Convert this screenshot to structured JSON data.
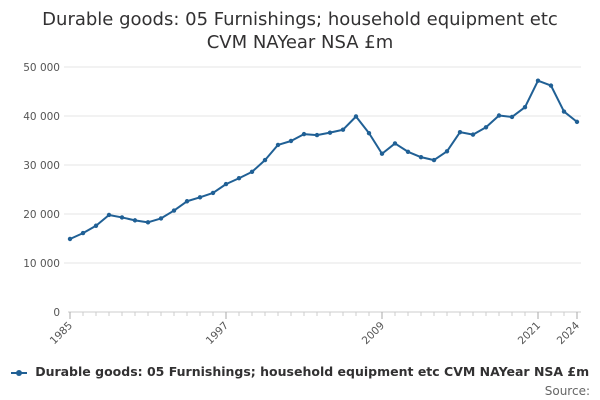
{
  "chart_data": {
    "type": "line",
    "title_lines": [
      "Durable goods: 05 Furnishings; household equipment etc",
      "CVM NAYear NSA £m"
    ],
    "x": [
      1985,
      1986,
      1987,
      1988,
      1989,
      1990,
      1991,
      1992,
      1993,
      1994,
      1995,
      1996,
      1997,
      1998,
      1999,
      2000,
      2001,
      2002,
      2003,
      2004,
      2005,
      2006,
      2007,
      2008,
      2009,
      2010,
      2011,
      2012,
      2013,
      2014,
      2015,
      2016,
      2017,
      2018,
      2019,
      2020,
      2021,
      2022,
      2023,
      2024
    ],
    "series": [
      {
        "name": "Durable goods: 05 Furnishings; household equipment etc CVM NAYear NSA £m",
        "color": "#206095",
        "values": [
          14900,
          16100,
          17600,
          19800,
          19300,
          18700,
          18300,
          19100,
          20700,
          22600,
          23400,
          24300,
          26100,
          27300,
          28600,
          31000,
          34100,
          34900,
          36300,
          36100,
          36600,
          37200,
          39900,
          36500,
          32300,
          34400,
          32700,
          31600,
          31000,
          32800,
          36700,
          36200,
          37700,
          40100,
          39800,
          41800,
          47200,
          46200,
          40900,
          38800
        ]
      }
    ],
    "y_ticks": [
      "0",
      "10 000",
      "20 000",
      "30 000",
      "40 000",
      "50 000"
    ],
    "y_tick_values": [
      0,
      10000,
      20000,
      30000,
      40000,
      50000
    ],
    "x_tick_labels": [
      "1985",
      "1997",
      "2009",
      "2021",
      "2024"
    ],
    "ylim": [
      0,
      50000
    ],
    "xlim": [
      1985,
      2024
    ],
    "grid": true,
    "legend_position": "bottom",
    "source_label": "Source:"
  }
}
